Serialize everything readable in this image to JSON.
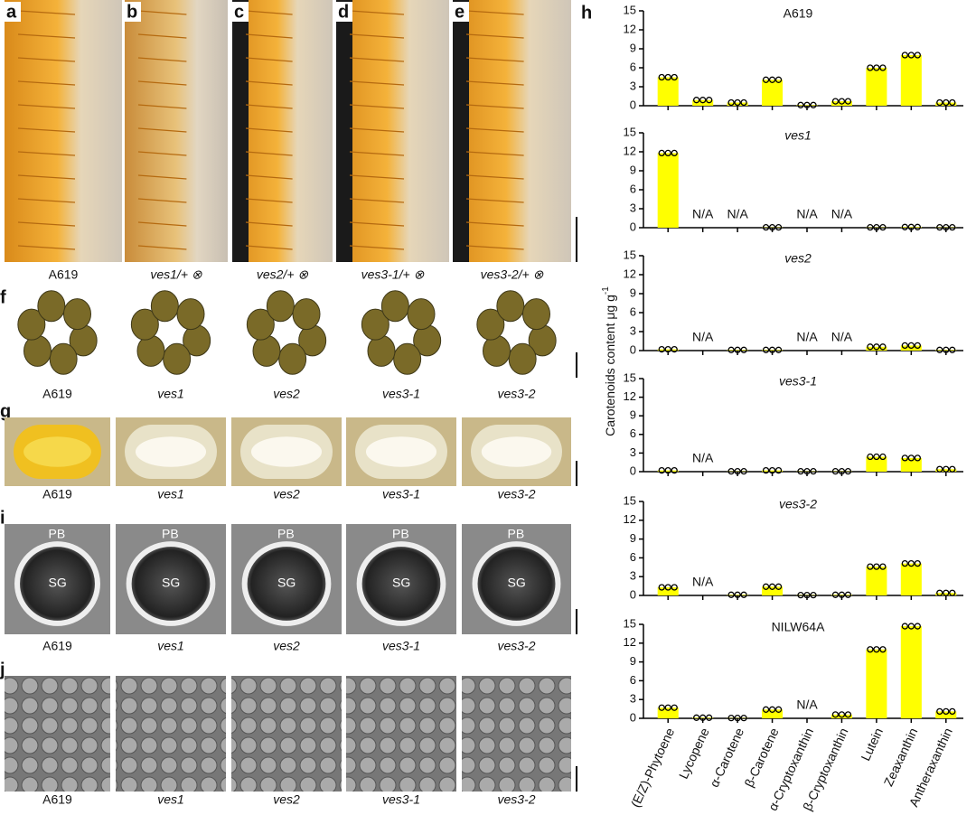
{
  "figure": {
    "a_e": {
      "letters": [
        "a",
        "b",
        "c",
        "d",
        "e"
      ],
      "labels": [
        "A619",
        "ves1/+ ⊗",
        "ves2/+ ⊗",
        "ves3-1/+ ⊗",
        "ves3-2/+ ⊗"
      ]
    },
    "f": {
      "letter": "f",
      "labels": [
        "A619",
        "ves1",
        "ves2",
        "ves3-1",
        "ves3-2"
      ]
    },
    "g": {
      "letter": "g",
      "labels": [
        "A619",
        "ves1",
        "ves2",
        "ves3-1",
        "ves3-2"
      ]
    },
    "i": {
      "letter": "i",
      "labels": [
        "A619",
        "ves1",
        "ves2",
        "ves3-1",
        "ves3-2"
      ],
      "pb": [
        "PB",
        "PB",
        "PB",
        "PB",
        "PB"
      ],
      "sg": [
        "SG",
        "SG",
        "SG",
        "SG",
        "SG"
      ]
    },
    "j": {
      "letter": "j",
      "labels": [
        "A619",
        "ves1",
        "ves2",
        "ves3-1",
        "ves3-2"
      ]
    },
    "h": {
      "letter": "h",
      "y_label": "Carotenoids content μg g",
      "y_label_sup": "-1"
    }
  },
  "chart_data": [
    {
      "type": "bar",
      "title": "A619",
      "color": "#ffff00",
      "ylim": [
        0,
        15
      ],
      "yticks": [
        0,
        3,
        6,
        9,
        12,
        15
      ],
      "values": [
        4.5,
        0.9,
        0.5,
        4.1,
        0.1,
        0.7,
        6.0,
        8.0,
        0.5
      ]
    },
    {
      "type": "bar",
      "title": "ves1",
      "color": "#ffff00",
      "ylim": [
        0,
        15
      ],
      "yticks": [
        0,
        3,
        6,
        9,
        12,
        15
      ],
      "values": [
        11.8,
        null,
        null,
        0.05,
        null,
        null,
        0.05,
        0.1,
        0.05
      ],
      "value_labels": [
        null,
        "N/A",
        "N/A",
        null,
        "N/A",
        "N/A",
        null,
        null,
        null
      ]
    },
    {
      "type": "bar",
      "title": "ves2",
      "color": "#ffff00",
      "ylim": [
        0,
        15
      ],
      "yticks": [
        0,
        3,
        6,
        9,
        12,
        15
      ],
      "values": [
        0.2,
        null,
        0.1,
        0.1,
        null,
        null,
        0.6,
        0.8,
        0.1
      ],
      "value_labels": [
        null,
        "N/A",
        null,
        null,
        "N/A",
        "N/A",
        null,
        null,
        null
      ]
    },
    {
      "type": "bar",
      "title": "ves3-1",
      "color": "#ffff00",
      "ylim": [
        0,
        15
      ],
      "yticks": [
        0,
        3,
        6,
        9,
        12,
        15
      ],
      "values": [
        0.2,
        null,
        0.05,
        0.2,
        0.05,
        0.05,
        2.4,
        2.2,
        0.4
      ],
      "value_labels": [
        null,
        "N/A",
        null,
        null,
        null,
        null,
        null,
        null,
        null
      ]
    },
    {
      "type": "bar",
      "title": "ves3-2",
      "color": "#ffff00",
      "ylim": [
        0,
        15
      ],
      "yticks": [
        0,
        3,
        6,
        9,
        12,
        15
      ],
      "values": [
        1.3,
        null,
        0.1,
        1.4,
        0.05,
        0.1,
        4.6,
        5.1,
        0.4
      ],
      "value_labels": [
        null,
        "N/A",
        null,
        null,
        null,
        null,
        null,
        null,
        null
      ]
    },
    {
      "type": "bar",
      "title": "NILW64A",
      "color": "#ffff00",
      "ylim": [
        0,
        15
      ],
      "yticks": [
        0,
        3,
        6,
        9,
        12,
        15
      ],
      "values": [
        1.7,
        0.1,
        0.05,
        1.4,
        null,
        0.6,
        11.0,
        14.7,
        1.1
      ],
      "value_labels": [
        null,
        null,
        null,
        null,
        "N/A",
        null,
        null,
        null,
        null
      ],
      "categories": [
        "(E/Z)-Phytoene",
        "Lycopene",
        "α-Carotene",
        "β-Carotene",
        "α-Cryptoxanthin",
        "β-Cryptoxanthin",
        "Lutein",
        "Zeaxanthin",
        "Antheraxanthin"
      ]
    }
  ]
}
